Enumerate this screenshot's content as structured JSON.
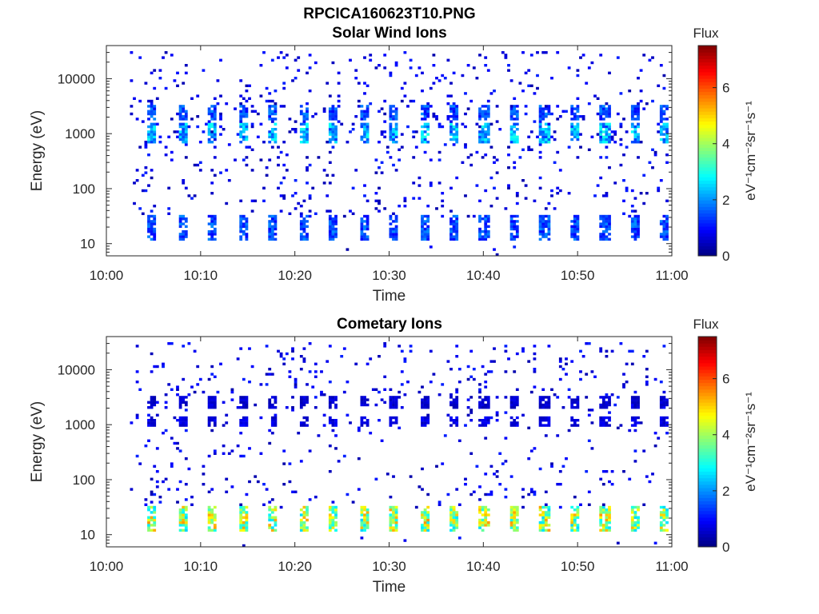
{
  "figure": {
    "filename_title": "RPCICA160623T10.PNG"
  },
  "chart_data": [
    {
      "type": "heatmap",
      "title": "Solar Wind Ions",
      "xlabel": "Time",
      "ylabel": "Energy (eV)",
      "x_ticks": [
        "10:00",
        "10:10",
        "10:20",
        "10:30",
        "10:40",
        "10:50",
        "11:00"
      ],
      "x_range_minutes": [
        0,
        60
      ],
      "y_scale": "log",
      "y_range": [
        6,
        40000
      ],
      "y_ticks": [
        {
          "value": 10,
          "label": "10"
        },
        {
          "value": 100,
          "label": "100"
        },
        {
          "value": 1000,
          "label": "1000"
        },
        {
          "value": 10000,
          "label": "10000"
        }
      ],
      "colorbar": {
        "title": "Flux",
        "label": "eV⁻¹cm⁻²sr⁻¹s⁻¹",
        "range": [
          0,
          7.5
        ],
        "ticks": [
          "0",
          "2",
          "4",
          "6"
        ],
        "colormap": "jet"
      },
      "grid": false,
      "data_start_minute": 2.5,
      "bands": [
        {
          "name": "high-energy band",
          "energy_eV": [
            700,
            1600
          ],
          "peak_flux": 3.0,
          "period_minutes": 3.2
        },
        {
          "name": "upper band",
          "energy_eV": [
            1800,
            3200
          ],
          "peak_flux": 2.0,
          "period_minutes": 3.2
        },
        {
          "name": "low-energy band",
          "energy_eV": [
            12,
            32
          ],
          "peak_flux": 2.0,
          "period_minutes": 3.2
        }
      ]
    },
    {
      "type": "heatmap",
      "title": "Cometary Ions",
      "xlabel": "Time",
      "ylabel": "Energy (eV)",
      "x_ticks": [
        "10:00",
        "10:10",
        "10:20",
        "10:30",
        "10:40",
        "10:50",
        "11:00"
      ],
      "x_range_minutes": [
        0,
        60
      ],
      "y_scale": "log",
      "y_range": [
        6,
        40000
      ],
      "y_ticks": [
        {
          "value": 10,
          "label": "10"
        },
        {
          "value": 100,
          "label": "100"
        },
        {
          "value": 1000,
          "label": "1000"
        },
        {
          "value": 10000,
          "label": "10000"
        }
      ],
      "colorbar": {
        "title": "Flux",
        "label": "eV⁻¹cm⁻²sr⁻¹s⁻¹",
        "range": [
          0,
          7.5
        ],
        "ticks": [
          "0",
          "2",
          "4",
          "6"
        ],
        "colormap": "jet"
      },
      "grid": false,
      "data_start_minute": 2.5,
      "bands": [
        {
          "name": "low-energy band",
          "energy_eV": [
            11,
            34
          ],
          "peak_flux": 5.5,
          "period_minutes": 3.2
        },
        {
          "name": "high-energy band",
          "energy_eV": [
            900,
            1400
          ],
          "peak_flux": 1.0,
          "period_minutes": 3.2
        },
        {
          "name": "upper band",
          "energy_eV": [
            2000,
            3500
          ],
          "peak_flux": 0.8,
          "period_minutes": 3.2
        }
      ]
    }
  ]
}
